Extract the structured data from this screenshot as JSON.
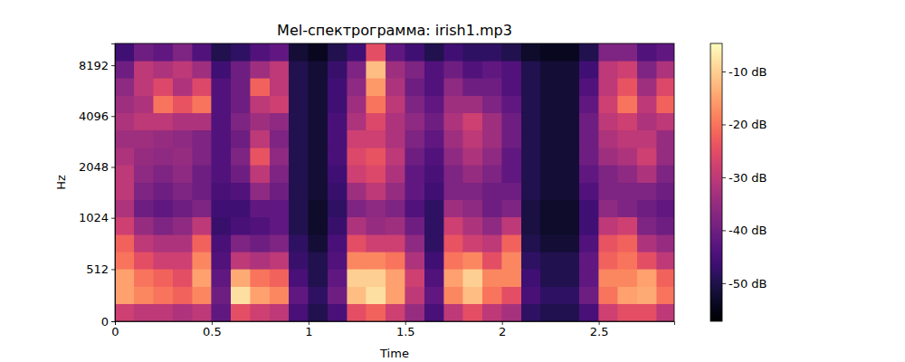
{
  "chart_data": {
    "type": "heatmap",
    "title": "Mel-спектрограмма: irish1.mp3",
    "x_label": "Time",
    "y_label": "Hz",
    "xlim": [
      0,
      2.89
    ],
    "xticks": [
      0,
      0.5,
      1,
      1.5,
      2,
      2.5
    ],
    "ylim": [
      0,
      11025
    ],
    "yticks": [
      0,
      512,
      1024,
      2048,
      4096,
      8192
    ],
    "log": "y",
    "x_edges": [
      0,
      0.1,
      0.2,
      0.3,
      0.4,
      0.5,
      0.6,
      0.7,
      0.8,
      0.9,
      1.0,
      1.1,
      1.2,
      1.3,
      1.4,
      1.5,
      1.6,
      1.7,
      1.8,
      1.9,
      2.0,
      2.1,
      2.2,
      2.3,
      2.4,
      2.5,
      2.6,
      2.7,
      2.8,
      2.9
    ],
    "y_edges": [
      0,
      171,
      341,
      512,
      683,
      853,
      1034,
      1310,
      1660,
      2104,
      2665,
      3376,
      4278,
      5419,
      6865,
      8699,
      11025
    ],
    "cells": [
      [
        -28,
        -30,
        -30,
        -32,
        -30,
        -42,
        -25,
        -28,
        -30,
        -45,
        -50,
        -45,
        -25,
        -22,
        -28,
        -35,
        -45,
        -30,
        -25,
        -30,
        -33,
        -48,
        -50,
        -50,
        -45,
        -28,
        -25,
        -25,
        -30
      ],
      [
        -15,
        -18,
        -20,
        -22,
        -18,
        -40,
        -8,
        -15,
        -18,
        -42,
        -48,
        -40,
        -12,
        -8,
        -15,
        -30,
        -42,
        -18,
        -12,
        -20,
        -25,
        -45,
        -48,
        -48,
        -40,
        -20,
        -15,
        -14,
        -20
      ],
      [
        -15,
        -20,
        -22,
        -25,
        -15,
        -42,
        -14,
        -20,
        -22,
        -45,
        -50,
        -42,
        -10,
        -10,
        -15,
        -28,
        -44,
        -15,
        -10,
        -18,
        -18,
        -46,
        -50,
        -50,
        -42,
        -18,
        -18,
        -15,
        -22
      ],
      [
        -20,
        -25,
        -28,
        -28,
        -18,
        -44,
        -30,
        -32,
        -30,
        -47,
        -50,
        -44,
        -18,
        -18,
        -20,
        -32,
        -46,
        -20,
        -18,
        -25,
        -18,
        -48,
        -50,
        -50,
        -42,
        -22,
        -20,
        -25,
        -30
      ],
      [
        -22,
        -30,
        -32,
        -32,
        -22,
        -45,
        -38,
        -40,
        -38,
        -48,
        -52,
        -45,
        -25,
        -28,
        -28,
        -36,
        -48,
        -24,
        -28,
        -30,
        -22,
        -50,
        -52,
        -52,
        -44,
        -24,
        -22,
        -32,
        -35
      ],
      [
        -28,
        -35,
        -38,
        -36,
        -30,
        -47,
        -45,
        -44,
        -42,
        -50,
        -53,
        -47,
        -32,
        -35,
        -34,
        -40,
        -48,
        -28,
        -32,
        -36,
        -30,
        -51,
        -53,
        -53,
        -46,
        -30,
        -28,
        -38,
        -40
      ],
      [
        -32,
        -40,
        -42,
        -40,
        -38,
        -46,
        -46,
        -42,
        -42,
        -50,
        -53,
        -48,
        -38,
        -36,
        -38,
        -44,
        -48,
        -34,
        -36,
        -40,
        -38,
        -51,
        -53,
        -53,
        -46,
        -36,
        -38,
        -40,
        -42
      ],
      [
        -30,
        -38,
        -40,
        -38,
        -40,
        -45,
        -44,
        -36,
        -40,
        -50,
        -52,
        -47,
        -34,
        -30,
        -35,
        -42,
        -46,
        -38,
        -38,
        -40,
        -40,
        -50,
        -52,
        -52,
        -44,
        -38,
        -38,
        -38,
        -40
      ],
      [
        -30,
        -36,
        -38,
        -36,
        -40,
        -44,
        -40,
        -30,
        -38,
        -50,
        -52,
        -46,
        -28,
        -26,
        -32,
        -42,
        -45,
        -38,
        -35,
        -38,
        -42,
        -50,
        -52,
        -52,
        -42,
        -38,
        -36,
        -32,
        -38
      ],
      [
        -32,
        -35,
        -36,
        -35,
        -38,
        -44,
        -38,
        -24,
        -36,
        -50,
        -52,
        -45,
        -26,
        -24,
        -30,
        -40,
        -44,
        -36,
        -32,
        -36,
        -42,
        -50,
        -52,
        -52,
        -40,
        -34,
        -32,
        -28,
        -35
      ],
      [
        -34,
        -34,
        -35,
        -36,
        -38,
        -44,
        -40,
        -30,
        -38,
        -50,
        -52,
        -45,
        -28,
        -28,
        -32,
        -38,
        -42,
        -34,
        -30,
        -34,
        -40,
        -50,
        -52,
        -52,
        -40,
        -32,
        -30,
        -30,
        -35
      ],
      [
        -32,
        -30,
        -30,
        -32,
        -32,
        -44,
        -38,
        -34,
        -36,
        -50,
        -52,
        -45,
        -32,
        -26,
        -32,
        -36,
        -40,
        -32,
        -28,
        -34,
        -40,
        -50,
        -52,
        -52,
        -40,
        -30,
        -28,
        -32,
        -30
      ],
      [
        -34,
        -32,
        -20,
        -24,
        -20,
        -44,
        -40,
        -30,
        -28,
        -50,
        -52,
        -46,
        -34,
        -20,
        -30,
        -38,
        -42,
        -34,
        -34,
        -38,
        -42,
        -50,
        -52,
        -52,
        -42,
        -28,
        -20,
        -30,
        -22
      ],
      [
        -36,
        -30,
        -26,
        -32,
        -26,
        -44,
        -40,
        -22,
        -30,
        -50,
        -52,
        -46,
        -36,
        -16,
        -32,
        -40,
        -44,
        -36,
        -40,
        -40,
        -44,
        -50,
        -52,
        -52,
        -44,
        -30,
        -24,
        -34,
        -26
      ],
      [
        -40,
        -30,
        -32,
        -30,
        -34,
        -46,
        -40,
        -34,
        -30,
        -50,
        -52,
        -47,
        -38,
        -12,
        -34,
        -38,
        -44,
        -40,
        -44,
        -42,
        -44,
        -50,
        -52,
        -52,
        -46,
        -30,
        -28,
        -38,
        -32
      ],
      [
        -46,
        -40,
        -42,
        -38,
        -44,
        -50,
        -48,
        -44,
        -42,
        -52,
        -54,
        -50,
        -46,
        -25,
        -42,
        -46,
        -50,
        -46,
        -48,
        -48,
        -50,
        -53,
        -54,
        -54,
        -50,
        -38,
        -38,
        -44,
        -42
      ]
    ],
    "colorbar": {
      "range": [
        -57.2,
        -4.7
      ],
      "ticks": [
        {
          "value": -10,
          "label": "-10 dB"
        },
        {
          "value": -20,
          "label": "-20 dB"
        },
        {
          "value": -30,
          "label": "-30 dB"
        },
        {
          "value": -40,
          "label": "-40 dB"
        },
        {
          "value": -50,
          "label": "-50 dB"
        }
      ]
    }
  }
}
